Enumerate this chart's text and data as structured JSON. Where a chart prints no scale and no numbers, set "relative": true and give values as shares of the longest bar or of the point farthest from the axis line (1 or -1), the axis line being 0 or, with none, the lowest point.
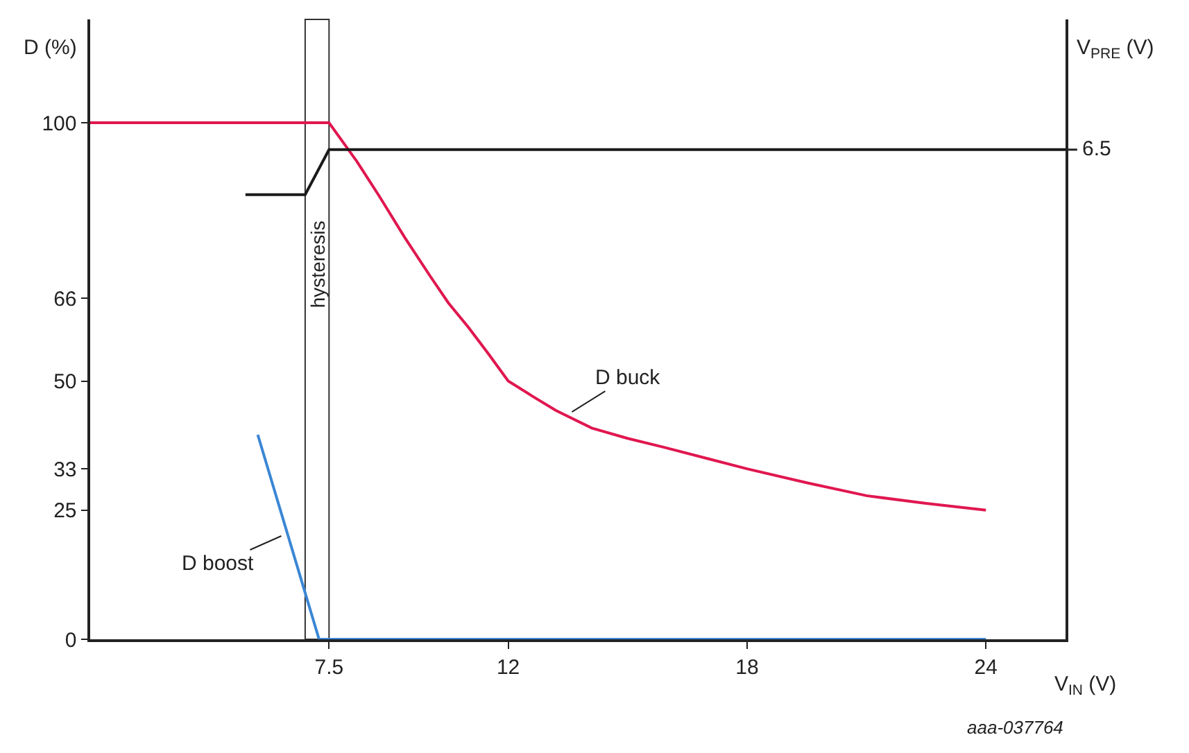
{
  "chart_data": [
    {
      "type": "line",
      "xlabel": "V$_{IN}$ (V)",
      "ylabel": "D (%)",
      "xlim": [
        1.5,
        26
      ],
      "xticks": [
        7.5,
        12,
        18,
        24
      ],
      "ylim": [
        0,
        120
      ],
      "yticks": [
        0,
        25,
        33,
        50,
        66,
        100
      ],
      "series": [
        {
          "color": "#e0174f",
          "x": [
            1.5,
            7.5,
            8.2,
            8.76,
            9.4,
            10.04,
            10.5,
            11.0,
            11.5,
            12,
            12.6,
            13.2,
            14.1,
            15.0,
            15.9,
            17.0,
            18,
            19.5,
            21.0,
            22.5,
            24
          ],
          "values": [
            100,
            100,
            92.5,
            85.8,
            77.8,
            70.3,
            65.1,
            60.4,
            55.3,
            50,
            47.1,
            44.3,
            40.9,
            38.9,
            37.2,
            35.0,
            33,
            30.3,
            27.8,
            26.3,
            25
          ]
        },
        {
          "color": "#3a86d4",
          "x": [
            5.71,
            7.25,
            24
          ],
          "values": [
            39.6,
            0,
            0
          ]
        }
      ],
      "bands": [
        {
          "axis": "x",
          "from": 6.9,
          "to": 7.5,
          "label": "hysteresis",
          "color": "#ffffff"
        }
      ],
      "annotations": [
        {
          "text": "D buck",
          "x": 13.6,
          "y": 44
        },
        {
          "text": "D boost",
          "x": 6.3,
          "y": 20
        },
        "aaa-037764"
      ],
      "grid": false,
      "marker": "none",
      "line_style": "solid"
    },
    {
      "type": "line",
      "relative": true,
      "y2label": "V$_{PRE}$ (V)",
      "xlim": [
        1.5,
        26
      ],
      "tick_labels": false,
      "series": [
        {
          "color": "#1a1a1a",
          "axis": "y2",
          "x": [
            5.4,
            6.9,
            7.5,
            26
          ],
          "values": [
            0.908,
            0.908,
            1,
            1
          ]
        }
      ],
      "annotations": [
        "6.5"
      ],
      "grid": false,
      "marker": "none",
      "line_style": "solid"
    }
  ]
}
